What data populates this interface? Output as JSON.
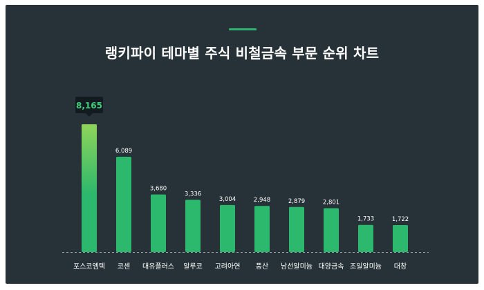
{
  "title": "랭키파이 테마별 주식 비철금속 부문 순위 차트",
  "colors": {
    "background": "#263238",
    "bar": "#2cb86d",
    "bar_top_highlight": "#8fd45a",
    "accent": "#2db46e",
    "callout_bg": "#141b20",
    "callout_text": "#3ccf7a",
    "label_text": "#ffffff"
  },
  "chart_data": {
    "type": "bar",
    "title": "랭키파이 테마별 주식 비철금속 부문 순위 차트",
    "categories": [
      "포스코엠텍",
      "코센",
      "대유플러스",
      "알루코",
      "고려아연",
      "풍산",
      "남선알미늄",
      "대양금속",
      "조일알미늄",
      "대창"
    ],
    "values": [
      8165,
      6089,
      3680,
      3336,
      3004,
      2948,
      2879,
      2801,
      1733,
      1722
    ],
    "value_labels": [
      "8,165",
      "6,089",
      "3,680",
      "3,336",
      "3,004",
      "2,948",
      "2,879",
      "2,801",
      "1,733",
      "1,722"
    ],
    "highlight_index": 0,
    "xlabel": "",
    "ylabel": "",
    "ylim": [
      0,
      8165
    ],
    "grid": false,
    "legend": "none"
  }
}
